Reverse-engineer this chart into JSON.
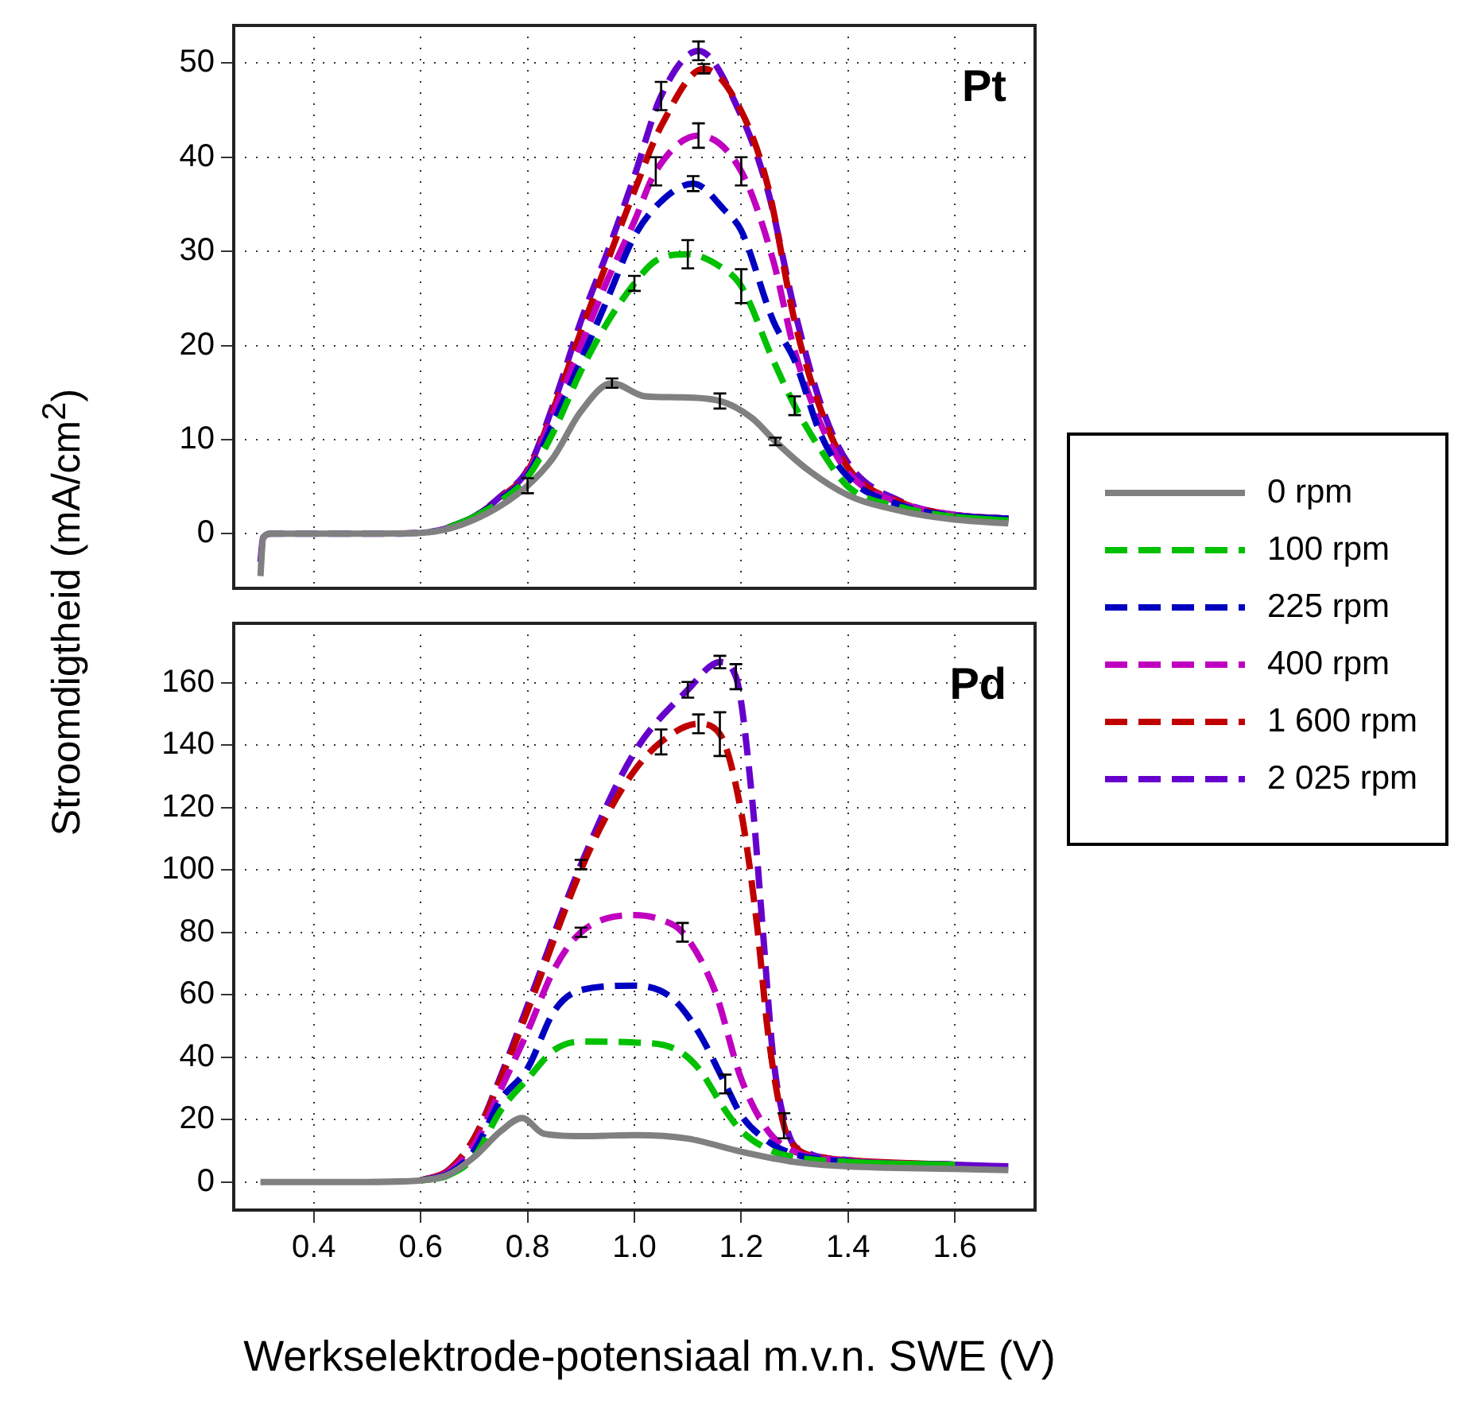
{
  "chart_data": [
    {
      "type": "line",
      "ylabel": "Stroomdigtheid (mA/cm$^{2}$)",
      "annotations": [
        "Pt"
      ],
      "xlim": [
        0.25,
        1.75
      ],
      "xticks": [
        0.4,
        0.6,
        0.8,
        1.0,
        1.2,
        1.4,
        1.6
      ],
      "ylim": [
        -5.8,
        54
      ],
      "yticks": [
        0,
        10,
        20,
        30,
        40,
        50
      ],
      "tick_labels": "y",
      "grid": true,
      "legend": "right",
      "series": [
        {
          "name": "0 rpm",
          "color": "#808080",
          "line_style": "solid",
          "x": [
            0.3,
            0.305,
            0.32,
            0.4,
            0.5,
            0.6,
            0.65,
            0.7,
            0.75,
            0.8,
            0.847,
            0.9,
            0.958,
            1.02,
            1.08,
            1.16,
            1.22,
            1.264,
            1.32,
            1.4,
            1.5,
            1.6,
            1.7
          ],
          "values": [
            -4.5,
            -0.5,
            0,
            0,
            0,
            0.1,
            0.5,
            1.5,
            3,
            5.1,
            8,
            13,
            16,
            14.6,
            14.5,
            14.1,
            12.3,
            9.8,
            7,
            4.1,
            2.4,
            1.5,
            1.1
          ],
          "errors": [
            null,
            null,
            null,
            null,
            null,
            null,
            null,
            null,
            null,
            0.8,
            null,
            null,
            0.5,
            null,
            null,
            0.8,
            null,
            0.4,
            null,
            null,
            null,
            null,
            null
          ]
        },
        {
          "name": "100 rpm",
          "color": "#00c000",
          "line_style": "dashed",
          "x": [
            0.65,
            0.7,
            0.75,
            0.8,
            0.85,
            0.9,
            0.95,
            1.0,
            1.04,
            1.1,
            1.16,
            1.2,
            1.26,
            1.3,
            1.35,
            1.4,
            1.5,
            1.6,
            1.7
          ],
          "values": [
            0.6,
            1.8,
            3.5,
            6,
            11,
            17.3,
            22.5,
            26.6,
            29,
            29.7,
            28.4,
            26.3,
            18.4,
            13.6,
            8.8,
            5,
            2.8,
            1.8,
            1.4
          ],
          "errors": [
            null,
            null,
            null,
            null,
            null,
            null,
            null,
            0.8,
            null,
            1.5,
            null,
            1.8,
            null,
            1,
            null,
            null,
            null,
            null,
            null
          ]
        },
        {
          "name": "225 rpm",
          "color": "#0000c0",
          "line_style": "dashed",
          "x": [
            0.65,
            0.7,
            0.75,
            0.8,
            0.85,
            0.9,
            0.95,
            1.0,
            1.05,
            1.11,
            1.17,
            1.2,
            1.26,
            1.3,
            1.35,
            1.4,
            1.5,
            1.6,
            1.7
          ],
          "values": [
            0.6,
            1.8,
            3.7,
            6.2,
            12,
            18.4,
            25,
            31.6,
            35.3,
            37.2,
            34.3,
            32.2,
            22.6,
            18.4,
            10.4,
            6,
            3,
            1.9,
            1.6
          ],
          "errors": [
            null,
            null,
            null,
            null,
            null,
            null,
            null,
            null,
            null,
            0.8,
            null,
            null,
            null,
            null,
            null,
            null,
            null,
            null,
            null
          ]
        },
        {
          "name": "400 rpm",
          "color": "#c000c0",
          "line_style": "dashed",
          "x": [
            0.65,
            0.7,
            0.75,
            0.8,
            0.85,
            0.9,
            0.95,
            1.0,
            1.04,
            1.12,
            1.2,
            1.26,
            1.3,
            1.35,
            1.4,
            1.5,
            1.6,
            1.7
          ],
          "values": [
            0.6,
            1.8,
            3.8,
            6.4,
            13,
            20,
            27,
            33.2,
            38.5,
            42.3,
            38.5,
            29,
            19.4,
            11.5,
            6.5,
            3.2,
            2,
            1.6
          ],
          "errors": [
            null,
            null,
            null,
            null,
            null,
            null,
            null,
            null,
            1.5,
            1.3,
            1.5,
            null,
            null,
            null,
            null,
            null,
            null,
            null
          ]
        },
        {
          "name": "1 600 rpm",
          "color": "#c00000",
          "line_style": "dashed",
          "x": [
            0.65,
            0.7,
            0.75,
            0.8,
            0.85,
            0.9,
            0.95,
            1.0,
            1.05,
            1.13,
            1.2,
            1.25,
            1.3,
            1.35,
            1.4,
            1.5,
            1.6,
            1.7
          ],
          "values": [
            0.6,
            1.8,
            3.9,
            6.6,
            13.5,
            21.5,
            29,
            36.4,
            43.3,
            49.4,
            44.9,
            36.9,
            22.6,
            13,
            7,
            3.3,
            2,
            1.6
          ],
          "errors": [
            null,
            null,
            null,
            null,
            null,
            null,
            null,
            null,
            null,
            0.5,
            null,
            null,
            null,
            null,
            null,
            null,
            null,
            null
          ]
        },
        {
          "name": "2 025 rpm",
          "color": "#6600cc",
          "line_style": "dashed",
          "x": [
            0.3,
            0.305,
            0.32,
            0.4,
            0.5,
            0.6,
            0.65,
            0.7,
            0.75,
            0.8,
            0.85,
            0.9,
            0.95,
            1.0,
            1.05,
            1.12,
            1.2,
            1.25,
            1.3,
            1.35,
            1.4,
            1.5,
            1.6,
            1.7
          ],
          "values": [
            -3,
            -0.4,
            0,
            0,
            0,
            0.1,
            0.6,
            1.8,
            4,
            6.8,
            14,
            22.6,
            30,
            38,
            46.5,
            51.3,
            44.4,
            36.4,
            23.7,
            13.6,
            7.5,
            3.4,
            2,
            1.6
          ],
          "errors": [
            null,
            null,
            null,
            null,
            null,
            null,
            null,
            null,
            null,
            null,
            null,
            null,
            null,
            null,
            1.5,
            1,
            null,
            null,
            null,
            null,
            null,
            null,
            null,
            null
          ]
        }
      ]
    },
    {
      "type": "line",
      "xlabel": "Werkselektrode-potensiaal m.v.n. SWE (V)",
      "annotations": [
        "Pd"
      ],
      "xlim": [
        0.25,
        1.75
      ],
      "xticks": [
        0.4,
        0.6,
        0.8,
        {
          "value": 1.0,
          "label": "1.0"
        },
        1.2,
        1.4,
        1.6
      ],
      "ylim": [
        -9,
        179
      ],
      "yticks": [
        0,
        20,
        40,
        60,
        80,
        100,
        120,
        140,
        160
      ],
      "grid": true,
      "series": [
        {
          "color": "#808080",
          "line_style": "solid",
          "x": [
            0.3,
            0.4,
            0.5,
            0.6,
            0.65,
            0.7,
            0.75,
            0.79,
            0.83,
            0.9,
            1.0,
            1.1,
            1.2,
            1.3,
            1.4,
            1.6,
            1.7
          ],
          "values": [
            0,
            0,
            0,
            0.5,
            2.2,
            8,
            16.3,
            20.5,
            15.5,
            14.7,
            15,
            13.9,
            9.7,
            6.4,
            5,
            4.2,
            3.8
          ]
        },
        {
          "color": "#00c000",
          "line_style": "dashed",
          "x": [
            0.6,
            0.65,
            0.7,
            0.75,
            0.8,
            0.85,
            0.9,
            1.0,
            1.08,
            1.12,
            1.17,
            1.2,
            1.25,
            1.3,
            1.4,
            1.6
          ],
          "values": [
            0.5,
            2,
            8,
            23,
            33,
            42.3,
            45,
            44.7,
            42.3,
            36.4,
            23,
            16.4,
            10.5,
            8,
            6.4,
            5.5
          ]
        },
        {
          "color": "#0000c0",
          "line_style": "dashed",
          "x": [
            0.6,
            0.65,
            0.7,
            0.75,
            0.8,
            0.85,
            0.9,
            1.0,
            1.07,
            1.12,
            1.17,
            1.2,
            1.25,
            1.3,
            1.4,
            1.6
          ],
          "values": [
            0.5,
            2.5,
            10,
            26.4,
            36.4,
            54.8,
            61.5,
            62.9,
            59,
            48,
            31.4,
            21.4,
            13,
            8.9,
            6.5,
            5.5
          ],
          "errors": [
            null,
            null,
            null,
            null,
            null,
            null,
            null,
            null,
            null,
            null,
            3,
            null,
            null,
            null,
            null,
            null
          ]
        },
        {
          "color": "#c000c0",
          "line_style": "dashed",
          "x": [
            0.6,
            0.65,
            0.7,
            0.75,
            0.8,
            0.85,
            0.9,
            1.0,
            1.05,
            1.09,
            1.15,
            1.2,
            1.25,
            1.3,
            1.4,
            1.6
          ],
          "values": [
            0.5,
            3,
            12,
            29.8,
            48.2,
            68.2,
            80,
            85.5,
            84,
            80,
            61.5,
            33,
            16.4,
            9.7,
            6.8,
            5.5
          ],
          "errors": [
            null,
            null,
            null,
            null,
            null,
            null,
            1.5,
            null,
            null,
            3,
            null,
            null,
            null,
            null,
            null,
            null
          ]
        },
        {
          "color": "#c00000",
          "line_style": "dashed",
          "x": [
            0.6,
            0.65,
            0.7,
            0.75,
            0.8,
            0.9,
            0.95,
            1.0,
            1.05,
            1.12,
            1.16,
            1.2,
            1.23,
            1.25,
            1.28,
            1.3,
            1.35,
            1.4,
            1.6
          ],
          "values": [
            0.5,
            3.5,
            14,
            33,
            54.8,
            100,
            118,
            131.8,
            141,
            146.8,
            143.5,
            118.4,
            81.6,
            48,
            18,
            11.4,
            8,
            7,
            5.5
          ],
          "errors": [
            null,
            null,
            null,
            null,
            null,
            null,
            null,
            null,
            4,
            3,
            7,
            null,
            null,
            null,
            4,
            null,
            null,
            null,
            null
          ]
        },
        {
          "color": "#6600cc",
          "line_style": "dashed",
          "x": [
            0.6,
            0.65,
            0.7,
            0.75,
            0.8,
            0.9,
            1.0,
            1.1,
            1.16,
            1.19,
            1.22,
            1.24,
            1.26,
            1.29,
            1.32,
            1.4,
            1.6,
            1.7
          ],
          "values": [
            0.5,
            3.5,
            14,
            34,
            56.5,
            101.7,
            137.6,
            157.7,
            166.6,
            161.9,
            123.4,
            81.6,
            39.8,
            14.7,
            9.7,
            7,
            5.5,
            5
          ],
          "errors": [
            null,
            null,
            null,
            null,
            null,
            1.5,
            null,
            2.5,
            2,
            4,
            null,
            null,
            null,
            null,
            null,
            null,
            null,
            null
          ]
        }
      ]
    }
  ]
}
